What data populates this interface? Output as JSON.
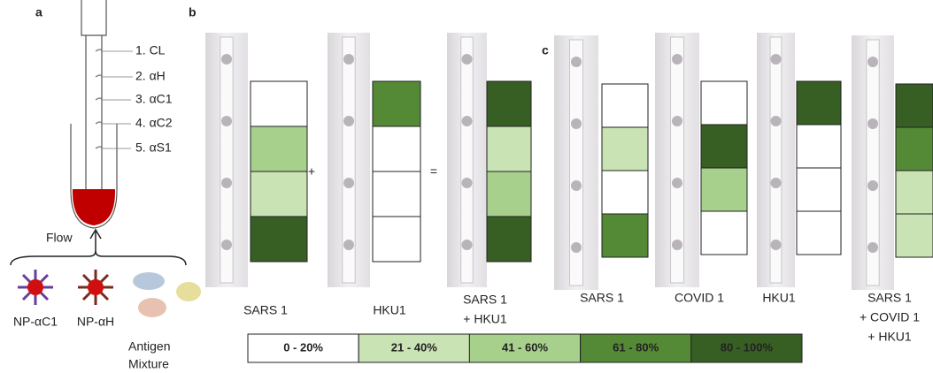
{
  "panels": {
    "a": {
      "label": "a",
      "layers": [
        "1. CL",
        "2. αH",
        "3. αC1",
        "4. αC2",
        "5. αS1"
      ],
      "flow": "Flow",
      "particles": [
        "NP-αC1",
        "NP-αH"
      ],
      "antigen": [
        "Antigen",
        "Mixture"
      ]
    },
    "b": {
      "label": "b",
      "operators": [
        "+",
        "="
      ],
      "strips": [
        {
          "name": [
            "SARS 1"
          ],
          "cells": [
            "#ffffff",
            "#a7d08c",
            "#c9e3b4",
            "#375f23"
          ]
        },
        {
          "name": [
            "HKU1"
          ],
          "cells": [
            "#548a36",
            "#ffffff",
            "#ffffff",
            "#ffffff"
          ]
        },
        {
          "name": [
            "SARS 1",
            "+ HKU1"
          ],
          "cells": [
            "#375f23",
            "#c9e3b4",
            "#a7d08c",
            "#375f23"
          ]
        }
      ]
    },
    "c": {
      "label": "c",
      "strips": [
        {
          "name": [
            "SARS 1"
          ],
          "cells": [
            "#ffffff",
            "#c9e3b4",
            "#ffffff",
            "#548a36"
          ]
        },
        {
          "name": [
            "COVID 1"
          ],
          "cells": [
            "#ffffff",
            "#375f23",
            "#a7d08c",
            "#ffffff"
          ]
        },
        {
          "name": [
            "HKU1"
          ],
          "cells": [
            "#375f23",
            "#ffffff",
            "#ffffff",
            "#ffffff"
          ]
        },
        {
          "name": [
            "SARS 1",
            "+ COVID 1",
            "+ HKU1"
          ],
          "cells": [
            "#375f23",
            "#548a36",
            "#c9e3b4",
            "#c9e3b4"
          ]
        }
      ]
    }
  },
  "legend": {
    "items": [
      {
        "label": "0 - 20%",
        "color": "#ffffff",
        "text_color": "#111111"
      },
      {
        "label": "21 - 40%",
        "color": "#c9e3b4",
        "text_color": "#111111"
      },
      {
        "label": "41 - 60%",
        "color": "#a7d08c",
        "text_color": "#111111"
      },
      {
        "label": "61 - 80%",
        "color": "#548a36",
        "text_color": "#ffffff"
      },
      {
        "label": "80 - 100%",
        "color": "#375f23",
        "text_color": "#ffffff"
      }
    ]
  }
}
